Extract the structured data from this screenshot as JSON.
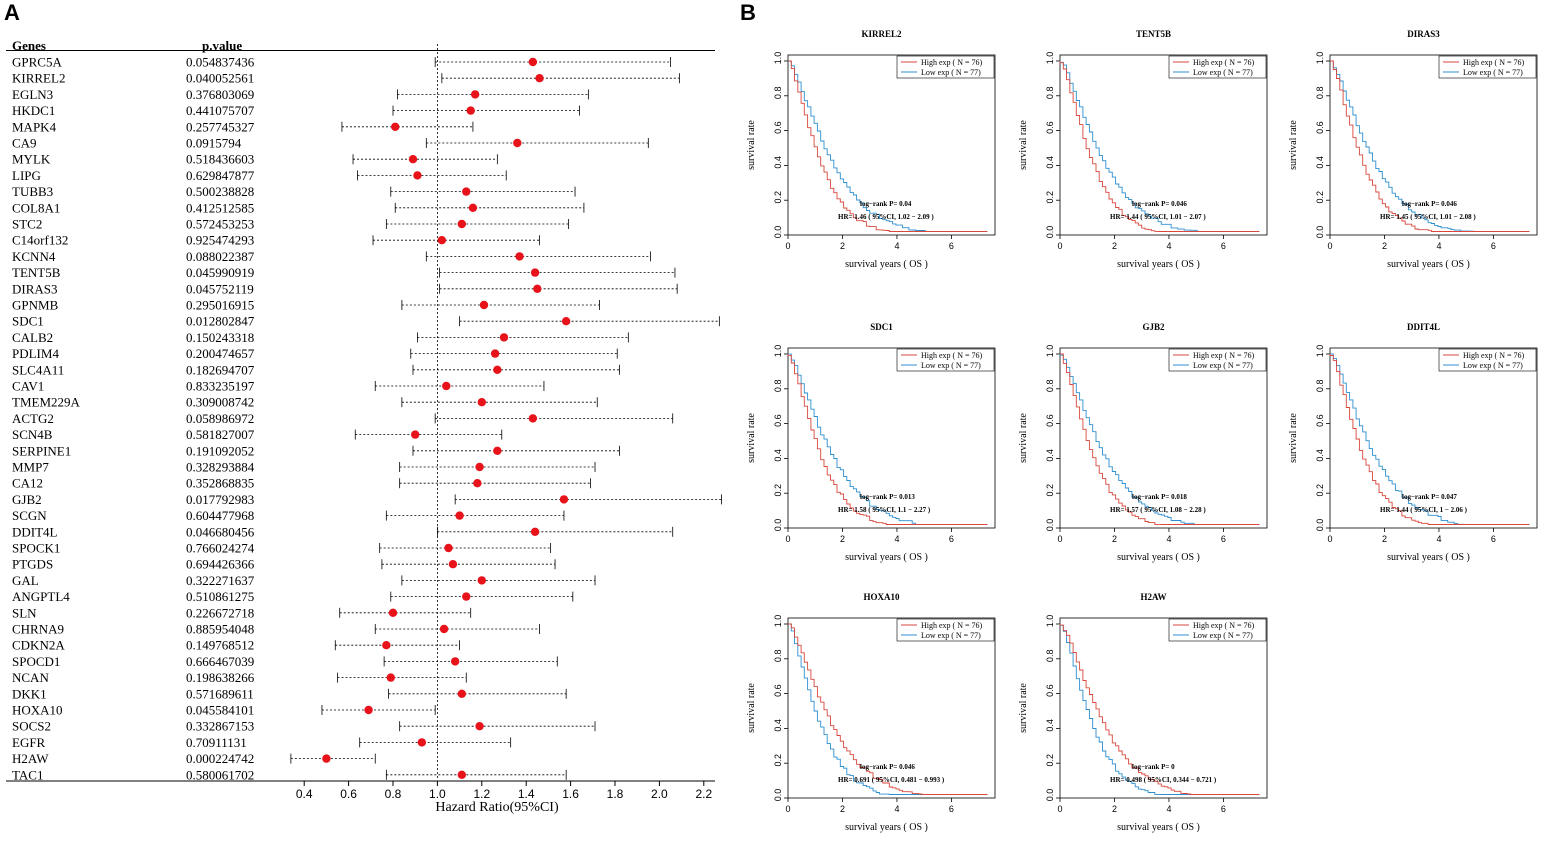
{
  "panel_a_label": "A",
  "panel_b_label": "B",
  "chart_data": [
    {
      "type": "forest",
      "col_genes_header": "Genes",
      "col_p_header": "p.value",
      "xlabel": "Hazard Ratio(95%CI)",
      "xlim": [
        0.3,
        2.3
      ],
      "xticks": [
        0.4,
        0.6,
        0.8,
        1.0,
        1.2,
        1.4,
        1.6,
        1.8,
        2.0,
        2.2
      ],
      "xtick_labels": [
        "0.4",
        "0.6",
        "0.8",
        "1.0",
        "1.2",
        "1.4",
        "1.6",
        "1.8",
        "2.0",
        "2.2"
      ],
      "reference_line": 1.0,
      "point_color": "#e8121a",
      "rows": [
        {
          "gene": "GPRC5A",
          "p": "0.054837436",
          "hr": 1.43,
          "lo": 0.99,
          "hi": 2.05
        },
        {
          "gene": "KIRREL2",
          "p": "0.040052561",
          "hr": 1.46,
          "lo": 1.02,
          "hi": 2.09
        },
        {
          "gene": "EGLN3",
          "p": "0.376803069",
          "hr": 1.17,
          "lo": 0.82,
          "hi": 1.68
        },
        {
          "gene": "HKDC1",
          "p": "0.441075707",
          "hr": 1.15,
          "lo": 0.8,
          "hi": 1.64
        },
        {
          "gene": "MAPK4",
          "p": "0.257745327",
          "hr": 0.81,
          "lo": 0.57,
          "hi": 1.16
        },
        {
          "gene": "CA9",
          "p": "0.0915794",
          "hr": 1.36,
          "lo": 0.95,
          "hi": 1.95
        },
        {
          "gene": "MYLK",
          "p": "0.518436603",
          "hr": 0.89,
          "lo": 0.62,
          "hi": 1.27
        },
        {
          "gene": "LIPG",
          "p": "0.629847877",
          "hr": 0.91,
          "lo": 0.64,
          "hi": 1.31
        },
        {
          "gene": "TUBB3",
          "p": "0.500238828",
          "hr": 1.13,
          "lo": 0.79,
          "hi": 1.62
        },
        {
          "gene": "COL8A1",
          "p": "0.412512585",
          "hr": 1.16,
          "lo": 0.81,
          "hi": 1.66
        },
        {
          "gene": "STC2",
          "p": "0.572453253",
          "hr": 1.11,
          "lo": 0.77,
          "hi": 1.59
        },
        {
          "gene": "C14orf132",
          "p": "0.925474293",
          "hr": 1.02,
          "lo": 0.71,
          "hi": 1.46
        },
        {
          "gene": "KCNN4",
          "p": "0.088022387",
          "hr": 1.37,
          "lo": 0.95,
          "hi": 1.96
        },
        {
          "gene": "TENT5B",
          "p": "0.045990919",
          "hr": 1.44,
          "lo": 1.01,
          "hi": 2.07
        },
        {
          "gene": "DIRAS3",
          "p": "0.045752119",
          "hr": 1.45,
          "lo": 1.01,
          "hi": 2.08
        },
        {
          "gene": "GPNMB",
          "p": "0.295016915",
          "hr": 1.21,
          "lo": 0.84,
          "hi": 1.73
        },
        {
          "gene": "SDC1",
          "p": "0.012802847",
          "hr": 1.58,
          "lo": 1.1,
          "hi": 2.27
        },
        {
          "gene": "CALB2",
          "p": "0.150243318",
          "hr": 1.3,
          "lo": 0.91,
          "hi": 1.86
        },
        {
          "gene": "PDLIM4",
          "p": "0.200474657",
          "hr": 1.26,
          "lo": 0.88,
          "hi": 1.81
        },
        {
          "gene": "SLC4A11",
          "p": "0.182694707",
          "hr": 1.27,
          "lo": 0.89,
          "hi": 1.82
        },
        {
          "gene": "CAV1",
          "p": "0.833235197",
          "hr": 1.04,
          "lo": 0.72,
          "hi": 1.48
        },
        {
          "gene": "TMEM229A",
          "p": "0.309008742",
          "hr": 1.2,
          "lo": 0.84,
          "hi": 1.72
        },
        {
          "gene": "ACTG2",
          "p": "0.058986972",
          "hr": 1.43,
          "lo": 0.99,
          "hi": 2.06
        },
        {
          "gene": "SCN4B",
          "p": "0.581827007",
          "hr": 0.9,
          "lo": 0.63,
          "hi": 1.29
        },
        {
          "gene": "SERPINE1",
          "p": "0.191092052",
          "hr": 1.27,
          "lo": 0.89,
          "hi": 1.82
        },
        {
          "gene": "MMP7",
          "p": "0.328293884",
          "hr": 1.19,
          "lo": 0.83,
          "hi": 1.71
        },
        {
          "gene": "CA12",
          "p": "0.352868835",
          "hr": 1.18,
          "lo": 0.83,
          "hi": 1.69
        },
        {
          "gene": "GJB2",
          "p": "0.017792983",
          "hr": 1.57,
          "lo": 1.08,
          "hi": 2.28
        },
        {
          "gene": "SCGN",
          "p": "0.604477968",
          "hr": 1.1,
          "lo": 0.77,
          "hi": 1.57
        },
        {
          "gene": "DDIT4L",
          "p": "0.046680456",
          "hr": 1.44,
          "lo": 1.0,
          "hi": 2.06
        },
        {
          "gene": "SPOCK1",
          "p": "0.766024274",
          "hr": 1.05,
          "lo": 0.74,
          "hi": 1.51
        },
        {
          "gene": "PTGDS",
          "p": "0.694426366",
          "hr": 1.07,
          "lo": 0.75,
          "hi": 1.53
        },
        {
          "gene": "GAL",
          "p": "0.322271637",
          "hr": 1.2,
          "lo": 0.84,
          "hi": 1.71
        },
        {
          "gene": "ANGPTL4",
          "p": "0.510861275",
          "hr": 1.13,
          "lo": 0.79,
          "hi": 1.61
        },
        {
          "gene": "SLN",
          "p": "0.226672718",
          "hr": 0.8,
          "lo": 0.56,
          "hi": 1.15
        },
        {
          "gene": "CHRNA9",
          "p": "0.885954048",
          "hr": 1.03,
          "lo": 0.72,
          "hi": 1.46
        },
        {
          "gene": "CDKN2A",
          "p": "0.149768512",
          "hr": 0.77,
          "lo": 0.54,
          "hi": 1.1
        },
        {
          "gene": "SPOCD1",
          "p": "0.666467039",
          "hr": 1.08,
          "lo": 0.76,
          "hi": 1.54
        },
        {
          "gene": "NCAN",
          "p": "0.198638266",
          "hr": 0.79,
          "lo": 0.55,
          "hi": 1.13
        },
        {
          "gene": "DKK1",
          "p": "0.571689611",
          "hr": 1.11,
          "lo": 0.78,
          "hi": 1.58
        },
        {
          "gene": "HOXA10",
          "p": "0.045584101",
          "hr": 0.69,
          "lo": 0.48,
          "hi": 0.99
        },
        {
          "gene": "SOCS2",
          "p": "0.332867153",
          "hr": 1.19,
          "lo": 0.83,
          "hi": 1.71
        },
        {
          "gene": "EGFR",
          "p": "0.70911131",
          "hr": 0.93,
          "lo": 0.65,
          "hi": 1.33
        },
        {
          "gene": "H2AW",
          "p": "0.000224742",
          "hr": 0.5,
          "lo": 0.34,
          "hi": 0.72
        },
        {
          "gene": "TAC1",
          "p": "0.580061702",
          "hr": 1.11,
          "lo": 0.77,
          "hi": 1.58
        }
      ]
    },
    {
      "type": "km",
      "title": "KIRREL2",
      "xlabel": "survival years ( OS )",
      "ylabel": "survival rate",
      "legend_high": "High exp ( N = 76)",
      "legend_low": "Low exp ( N = 77)",
      "logrank": "log−rank P= 0.04",
      "hr_text": "HR= 1.46 ( 95%CI, 1.02 − 2.09 )",
      "high_better": false,
      "xticks": [
        0,
        2,
        4,
        6
      ],
      "yticks": [
        "0.0",
        "0.2",
        "0.4",
        "0.6",
        "0.8",
        "1.0"
      ],
      "high_color": "#d9473b",
      "low_color": "#2d8fd0"
    },
    {
      "type": "km",
      "title": "TENT5B",
      "xlabel": "survival years ( OS )",
      "ylabel": "survival rate",
      "legend_high": "High exp ( N = 76)",
      "legend_low": "Low exp ( N = 77)",
      "logrank": "log−rank P= 0.046",
      "hr_text": "HR= 1.44 ( 95%CI, 1.01 − 2.07 )",
      "high_better": false,
      "xticks": [
        0,
        2,
        4,
        6
      ],
      "yticks": [
        "0.0",
        "0.2",
        "0.4",
        "0.6",
        "0.8",
        "1.0"
      ],
      "high_color": "#d9473b",
      "low_color": "#2d8fd0"
    },
    {
      "type": "km",
      "title": "DIRAS3",
      "xlabel": "survival years ( OS )",
      "ylabel": "survival rate",
      "legend_high": "High exp ( N = 76)",
      "legend_low": "Low exp ( N = 77)",
      "logrank": "log−rank P= 0.046",
      "hr_text": "HR= 1.45 ( 95%CI, 1.01 − 2.08 )",
      "high_better": false,
      "xticks": [
        0,
        2,
        4,
        6
      ],
      "yticks": [
        "0.0",
        "0.2",
        "0.4",
        "0.6",
        "0.8",
        "1.0"
      ],
      "high_color": "#d9473b",
      "low_color": "#2d8fd0"
    },
    {
      "type": "km",
      "title": "SDC1",
      "xlabel": "survival years ( OS )",
      "ylabel": "survival rate",
      "legend_high": "High exp ( N = 76)",
      "legend_low": "Low exp ( N = 77)",
      "logrank": "log−rank P= 0.013",
      "hr_text": "HR= 1.58 ( 95%CI, 1.1 − 2.27 )",
      "high_better": false,
      "xticks": [
        0,
        2,
        4,
        6
      ],
      "yticks": [
        "0.0",
        "0.2",
        "0.4",
        "0.6",
        "0.8",
        "1.0"
      ],
      "high_color": "#d9473b",
      "low_color": "#2d8fd0"
    },
    {
      "type": "km",
      "title": "GJB2",
      "xlabel": "survival years ( OS )",
      "ylabel": "survival rate",
      "legend_high": "High exp ( N = 76)",
      "legend_low": "Low exp ( N = 77)",
      "logrank": "log−rank P= 0.018",
      "hr_text": "HR= 1.57 ( 95%CI, 1.08 − 2.28 )",
      "high_better": false,
      "xticks": [
        0,
        2,
        4,
        6
      ],
      "yticks": [
        "0.0",
        "0.2",
        "0.4",
        "0.6",
        "0.8",
        "1.0"
      ],
      "high_color": "#d9473b",
      "low_color": "#2d8fd0"
    },
    {
      "type": "km",
      "title": "DDIT4L",
      "xlabel": "survival years ( OS )",
      "ylabel": "survival rate",
      "legend_high": "High exp ( N = 76)",
      "legend_low": "Low exp ( N = 77)",
      "logrank": "log−rank P= 0.047",
      "hr_text": "HR= 1.44 ( 95%CI, 1 − 2.06 )",
      "high_better": false,
      "xticks": [
        0,
        2,
        4,
        6
      ],
      "yticks": [
        "0.0",
        "0.2",
        "0.4",
        "0.6",
        "0.8",
        "1.0"
      ],
      "high_color": "#d9473b",
      "low_color": "#2d8fd0"
    },
    {
      "type": "km",
      "title": "HOXA10",
      "xlabel": "survival years ( OS )",
      "ylabel": "survival rate",
      "legend_high": "High exp ( N = 76)",
      "legend_low": "Low exp ( N = 77)",
      "logrank": "log−rank P= 0.046",
      "hr_text": "HR= 0.691 ( 95%CI, 0.481 − 0.993 )",
      "high_better": true,
      "xticks": [
        0,
        2,
        4,
        6
      ],
      "yticks": [
        "0.0",
        "0.2",
        "0.4",
        "0.6",
        "0.8",
        "1.0"
      ],
      "high_color": "#d9473b",
      "low_color": "#2d8fd0"
    },
    {
      "type": "km",
      "title": "H2AW",
      "xlabel": "survival years ( OS )",
      "ylabel": "survival rate",
      "legend_high": "High exp ( N = 76)",
      "legend_low": "Low exp ( N = 77)",
      "logrank": "log−rank P= 0",
      "hr_text": "HR= 0.498 ( 95%CI, 0.344 − 0.721 )",
      "high_better": true,
      "xticks": [
        0,
        2,
        4,
        6
      ],
      "yticks": [
        "0.0",
        "0.2",
        "0.4",
        "0.6",
        "0.8",
        "1.0"
      ],
      "high_color": "#d9473b",
      "low_color": "#2d8fd0"
    }
  ]
}
